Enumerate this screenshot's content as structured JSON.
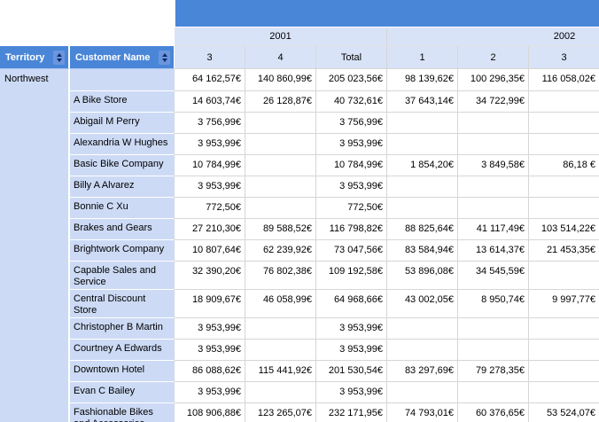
{
  "colors": {
    "header_blue": "#4a86d8",
    "band_blue": "#4a86d8",
    "light_blue_header": "#d9e3f7",
    "label_bg": "#ccdaf5",
    "grid_line": "#d6d6d6",
    "label_separator": "#ffffff",
    "sort_btn_bg": "#6b96de",
    "sort_arrow": "#0c2a66",
    "header_text": "#ffffff",
    "cell_text": "#000000"
  },
  "icons": {
    "sort": "sort-ascending-descending-arrows"
  },
  "pivot": {
    "row_headers": [
      {
        "label": "Territory"
      },
      {
        "label": "Customer Name"
      }
    ],
    "column_groups": [
      {
        "label": "2001",
        "columns": [
          "3",
          "4",
          "Total"
        ]
      },
      {
        "label": "2002",
        "columns": [
          "1",
          "2",
          "3"
        ]
      }
    ],
    "territory": "Northwest",
    "rows": [
      {
        "customer": "",
        "values": [
          "64 162,57€",
          "140 860,99€",
          "205 023,56€",
          "98 139,62€",
          "100 296,35€",
          "116 058,02€"
        ]
      },
      {
        "customer": "A Bike Store",
        "values": [
          "14 603,74€",
          "26 128,87€",
          "40 732,61€",
          "37 643,14€",
          "34 722,99€",
          ""
        ]
      },
      {
        "customer": "Abigail M Perry",
        "values": [
          "3 756,99€",
          "",
          "3 756,99€",
          "",
          "",
          ""
        ]
      },
      {
        "customer": "Alexandria W Hughes",
        "values": [
          "3 953,99€",
          "",
          "3 953,99€",
          "",
          "",
          ""
        ]
      },
      {
        "customer": "Basic Bike Company",
        "values": [
          "10 784,99€",
          "",
          "10 784,99€",
          "1 854,20€",
          "3 849,58€",
          "86,18 €"
        ]
      },
      {
        "customer": "Billy A Alvarez",
        "values": [
          "3 953,99€",
          "",
          "3 953,99€",
          "",
          "",
          ""
        ]
      },
      {
        "customer": "Bonnie C Xu",
        "values": [
          "772,50€",
          "",
          "772,50€",
          "",
          "",
          ""
        ]
      },
      {
        "customer": "Brakes and Gears",
        "values": [
          "27 210,30€",
          "89 588,52€",
          "116 798,82€",
          "88 825,64€",
          "41 117,49€",
          "103 514,22€"
        ]
      },
      {
        "customer": "Brightwork Company",
        "values": [
          "10 807,64€",
          "62 239,92€",
          "73 047,56€",
          "83 584,94€",
          "13 614,37€",
          "21 453,35€"
        ]
      },
      {
        "customer": "Capable Sales and Service",
        "values": [
          "32 390,20€",
          "76 802,38€",
          "109 192,58€",
          "53 896,08€",
          "34 545,59€",
          ""
        ]
      },
      {
        "customer": "Central Discount Store",
        "values": [
          "18 909,67€",
          "46 058,99€",
          "64 968,66€",
          "43 002,05€",
          "8 950,74€",
          "9 997,77€"
        ]
      },
      {
        "customer": "Christopher B Martin",
        "values": [
          "3 953,99€",
          "",
          "3 953,99€",
          "",
          "",
          ""
        ]
      },
      {
        "customer": "Courtney A Edwards",
        "values": [
          "3 953,99€",
          "",
          "3 953,99€",
          "",
          "",
          ""
        ]
      },
      {
        "customer": "Downtown Hotel",
        "values": [
          "86 088,62€",
          "115 441,92€",
          "201 530,54€",
          "83 297,69€",
          "79 278,35€",
          ""
        ]
      },
      {
        "customer": "Evan C Bailey",
        "values": [
          "3 953,99€",
          "",
          "3 953,99€",
          "",
          "",
          ""
        ]
      },
      {
        "customer": "Fashionable Bikes and Accessories",
        "values": [
          "108 906,88€",
          "123 265,07€",
          "232 171,95€",
          "74 793,01€",
          "60 376,65€",
          "53 524,07€"
        ]
      }
    ]
  }
}
